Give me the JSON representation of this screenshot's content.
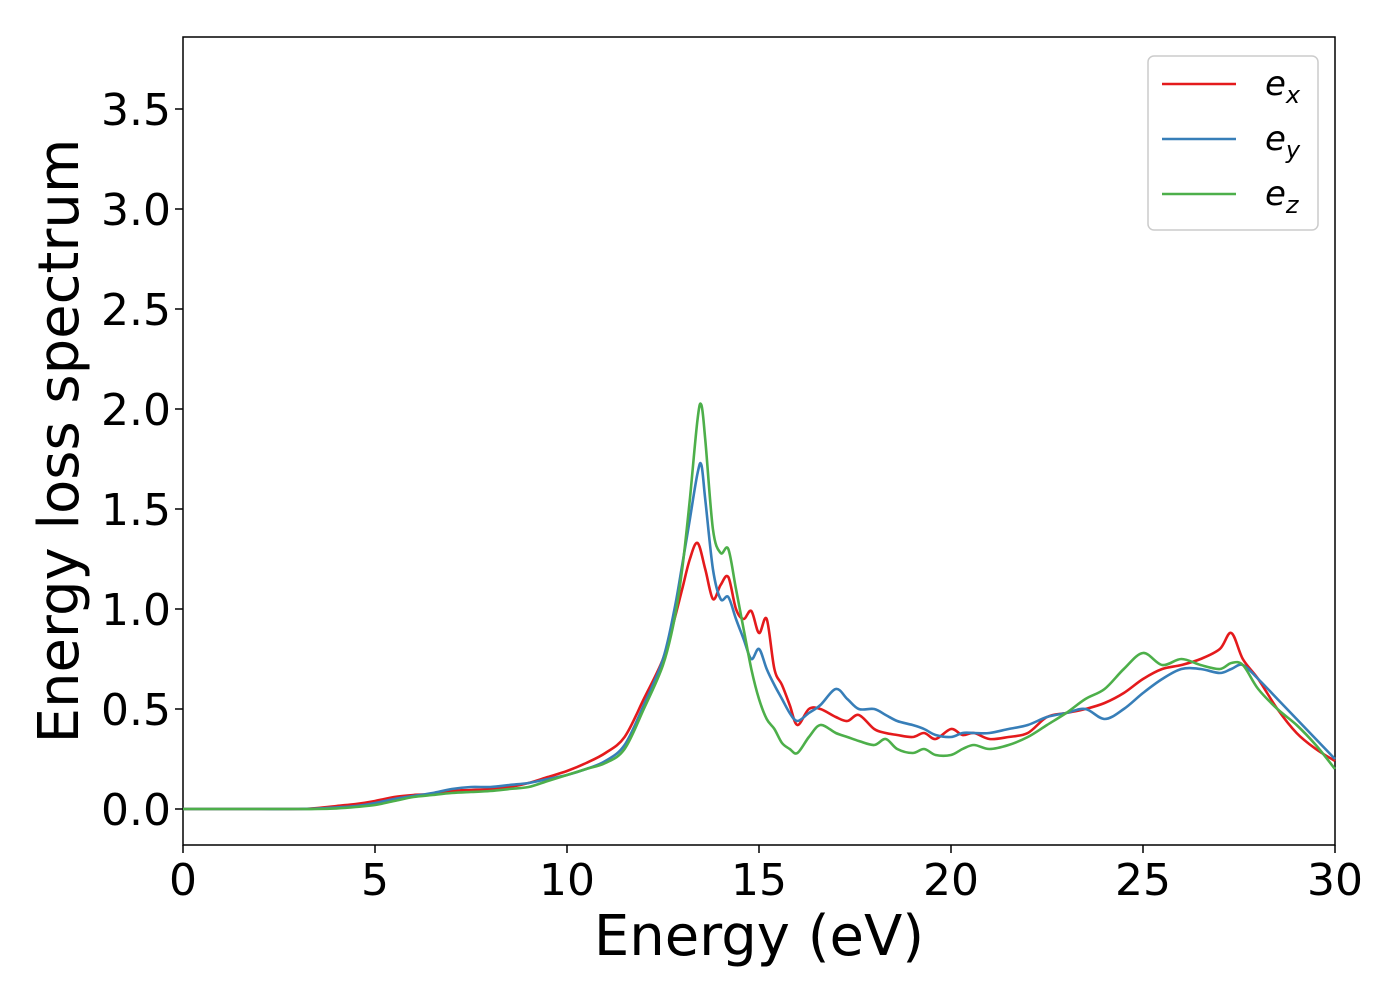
{
  "chart_data": {
    "type": "line",
    "xlabel": "Energy (eV)",
    "ylabel": "Energy loss spectrum",
    "xlim": [
      0,
      30
    ],
    "ylim": [
      -0.18,
      3.86
    ],
    "xticks": [
      "0",
      "5",
      "10",
      "15",
      "20",
      "25",
      "30"
    ],
    "yticks": [
      "0.0",
      "0.5",
      "1.0",
      "1.5",
      "2.0",
      "2.5",
      "3.0",
      "3.5"
    ],
    "grid": false,
    "legend_position": "top-right",
    "series": [
      {
        "name": "e",
        "sub": "x",
        "color": "#e41a1c",
        "x": [
          0,
          1,
          2,
          3,
          3.5,
          4,
          4.5,
          5,
          5.5,
          6,
          6.5,
          7,
          7.5,
          8,
          8.5,
          9,
          9.5,
          10,
          10.5,
          11,
          11.5,
          12,
          12.5,
          12.8,
          13,
          13.2,
          13.4,
          13.6,
          13.8,
          14,
          14.2,
          14.4,
          14.6,
          14.8,
          15,
          15.2,
          15.4,
          15.6,
          15.8,
          16,
          16.3,
          16.6,
          17,
          17.3,
          17.6,
          18,
          18.3,
          18.6,
          19,
          19.3,
          19.6,
          20,
          20.3,
          20.6,
          21,
          21.5,
          22,
          22.5,
          23,
          23.5,
          24,
          24.5,
          25,
          25.5,
          26,
          26.5,
          27,
          27.3,
          27.6,
          28,
          28.5,
          29,
          29.5,
          30
        ],
        "y": [
          0,
          0,
          0,
          0,
          0.005,
          0.015,
          0.025,
          0.04,
          0.06,
          0.07,
          0.075,
          0.09,
          0.095,
          0.1,
          0.11,
          0.13,
          0.16,
          0.19,
          0.23,
          0.28,
          0.36,
          0.55,
          0.75,
          0.95,
          1.1,
          1.25,
          1.33,
          1.2,
          1.05,
          1.12,
          1.16,
          1.0,
          0.95,
          0.99,
          0.88,
          0.95,
          0.7,
          0.62,
          0.52,
          0.42,
          0.5,
          0.5,
          0.46,
          0.44,
          0.47,
          0.4,
          0.38,
          0.37,
          0.36,
          0.38,
          0.35,
          0.4,
          0.37,
          0.38,
          0.35,
          0.36,
          0.38,
          0.46,
          0.48,
          0.5,
          0.53,
          0.58,
          0.65,
          0.7,
          0.72,
          0.75,
          0.8,
          0.88,
          0.75,
          0.65,
          0.5,
          0.38,
          0.3,
          0.24
        ]
      },
      {
        "name": "e",
        "sub": "y",
        "color": "#377eb8",
        "x": [
          0,
          1,
          2,
          3,
          3.5,
          4,
          4.5,
          5,
          5.5,
          6,
          6.5,
          7,
          7.5,
          8,
          8.5,
          9,
          9.5,
          10,
          10.5,
          11,
          11.5,
          12,
          12.5,
          12.8,
          13,
          13.2,
          13.4,
          13.5,
          13.6,
          13.8,
          14,
          14.2,
          14.4,
          14.6,
          14.8,
          15,
          15.2,
          15.4,
          15.6,
          15.8,
          16,
          16.3,
          16.6,
          17,
          17.3,
          17.6,
          18,
          18.3,
          18.6,
          19,
          19.3,
          19.6,
          20,
          20.3,
          20.6,
          21,
          21.5,
          22,
          22.5,
          23,
          23.5,
          24,
          24.5,
          25,
          25.5,
          26,
          26.5,
          27,
          27.3,
          27.6,
          28,
          28.5,
          29,
          29.5,
          30
        ],
        "y": [
          0,
          0,
          0,
          0,
          0.002,
          0.008,
          0.015,
          0.03,
          0.05,
          0.065,
          0.08,
          0.1,
          0.11,
          0.11,
          0.12,
          0.13,
          0.15,
          0.17,
          0.2,
          0.24,
          0.32,
          0.52,
          0.75,
          1.0,
          1.22,
          1.45,
          1.68,
          1.72,
          1.55,
          1.2,
          1.05,
          1.06,
          0.95,
          0.85,
          0.75,
          0.8,
          0.7,
          0.62,
          0.55,
          0.48,
          0.44,
          0.48,
          0.52,
          0.6,
          0.55,
          0.5,
          0.5,
          0.47,
          0.44,
          0.42,
          0.4,
          0.37,
          0.36,
          0.38,
          0.38,
          0.38,
          0.4,
          0.42,
          0.46,
          0.48,
          0.5,
          0.45,
          0.5,
          0.58,
          0.65,
          0.7,
          0.7,
          0.68,
          0.7,
          0.72,
          0.65,
          0.55,
          0.45,
          0.35,
          0.25
        ]
      },
      {
        "name": "e",
        "sub": "z",
        "color": "#4daf4a",
        "x": [
          0,
          1,
          2,
          3,
          3.5,
          4,
          4.5,
          5,
          5.5,
          6,
          6.5,
          7,
          7.5,
          8,
          8.5,
          9,
          9.5,
          10,
          10.5,
          11,
          11.5,
          12,
          12.5,
          12.8,
          13,
          13.2,
          13.4,
          13.5,
          13.6,
          13.8,
          14,
          14.2,
          14.4,
          14.6,
          14.8,
          15,
          15.2,
          15.4,
          15.6,
          15.8,
          16,
          16.3,
          16.6,
          17,
          17.3,
          17.6,
          18,
          18.3,
          18.6,
          19,
          19.3,
          19.6,
          20,
          20.3,
          20.6,
          21,
          21.5,
          22,
          22.5,
          23,
          23.5,
          24,
          24.5,
          25,
          25.5,
          26,
          26.5,
          27,
          27.3,
          27.6,
          28,
          28.5,
          29,
          29.5,
          30
        ],
        "y": [
          0,
          0,
          0,
          0,
          0,
          0.003,
          0.01,
          0.02,
          0.04,
          0.06,
          0.07,
          0.08,
          0.085,
          0.09,
          0.1,
          0.11,
          0.14,
          0.17,
          0.2,
          0.23,
          0.3,
          0.5,
          0.72,
          0.95,
          1.2,
          1.55,
          1.95,
          2.02,
          1.85,
          1.4,
          1.28,
          1.3,
          1.1,
          0.9,
          0.7,
          0.55,
          0.45,
          0.4,
          0.33,
          0.3,
          0.28,
          0.36,
          0.42,
          0.38,
          0.36,
          0.34,
          0.32,
          0.35,
          0.3,
          0.28,
          0.3,
          0.27,
          0.27,
          0.3,
          0.32,
          0.3,
          0.32,
          0.36,
          0.42,
          0.48,
          0.55,
          0.6,
          0.7,
          0.78,
          0.72,
          0.75,
          0.72,
          0.7,
          0.73,
          0.72,
          0.6,
          0.5,
          0.42,
          0.32,
          0.2
        ]
      }
    ]
  }
}
